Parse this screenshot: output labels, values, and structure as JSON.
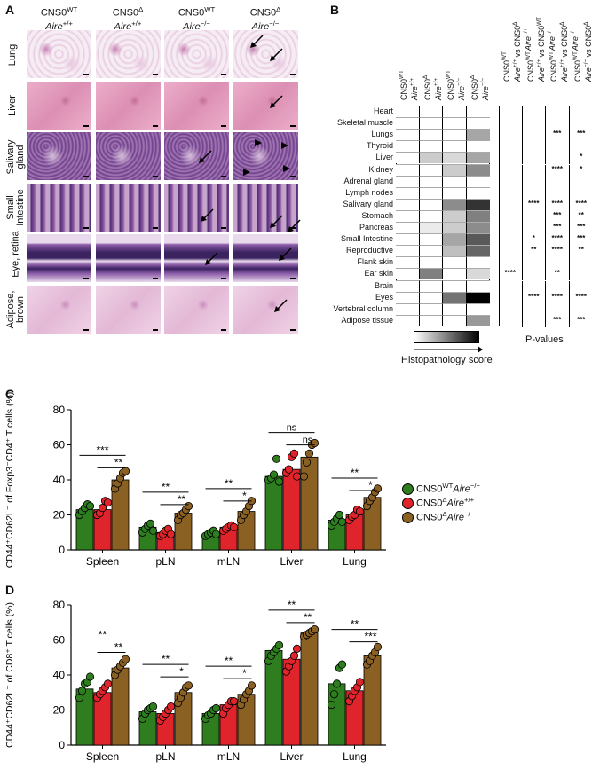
{
  "panel_a": {
    "letter": "A",
    "col_headers": [
      {
        "line1": "CNS0",
        "sup1": "WT",
        "line2": "Aire",
        "sup2": "+/+"
      },
      {
        "line1": "CNS0",
        "sup1": "Δ",
        "line2": "Aire",
        "sup2": "+/+"
      },
      {
        "line1": "CNS0",
        "sup1": "WT",
        "line2": "Aire",
        "sup2": "−/−"
      },
      {
        "line1": "CNS0",
        "sup1": "Δ",
        "line2": "Aire",
        "sup2": "−/−"
      }
    ],
    "row_labels": [
      "Lung",
      "Liver",
      "Salivary gland",
      "Small Intestine",
      "Eye, retina",
      "Adipose, brown"
    ]
  },
  "panel_b": {
    "letter": "B",
    "heatmap_headers": [
      {
        "a": "CNS0",
        "sa": "WT",
        "b": "Aire",
        "sb": "+/+"
      },
      {
        "a": "CNS0",
        "sa": "Δ",
        "b": "Aire",
        "sb": "+/+"
      },
      {
        "a": "CNS0",
        "sa": "WT",
        "b": "Aire",
        "sb": "−/−"
      },
      {
        "a": "CNS0",
        "sa": "Δ",
        "b": "Aire",
        "sb": "−/−"
      }
    ],
    "pval_headers": [
      {
        "a": "CNS0",
        "sa": "WT",
        "b": "Aire",
        "sb": "+/+",
        "c": "vs",
        "d": "CNS0",
        "sd": "Δ",
        "e": "Aire",
        "se": "+/+"
      },
      {
        "a": "CNS0",
        "sa": "WT",
        "b": "Aire",
        "sb": "+/+",
        "c": "vs",
        "d": "CNS0",
        "sd": "WT",
        "e": "Aire",
        "se": "−/−"
      },
      {
        "a": "CNS0",
        "sa": "WT",
        "b": "Aire",
        "sb": "+/+",
        "c": "vs",
        "d": "CNS0",
        "sd": "Δ",
        "e": "Aire",
        "se": "−/−"
      },
      {
        "a": "CNS0",
        "sa": "WT",
        "b": "Aire",
        "sb": "−/−",
        "c": "vs",
        "d": "CNS0",
        "sd": "Δ",
        "e": "Aire",
        "se": "−/−"
      }
    ],
    "tissues": [
      "Heart",
      "Skeletal muscle",
      "Lungs",
      "Thyroid",
      "Liver",
      "Kidney",
      "Adrenal gland",
      "Lymph nodes",
      "Salivary gland",
      "Stomach",
      "Pancreas",
      "Small Intestine",
      "Reproductive",
      "Flank skin",
      "Ear skin",
      "Brain",
      "Eyes",
      "Vertebral column",
      "Adipose tissue"
    ],
    "scores": [
      [
        0,
        0,
        0,
        0
      ],
      [
        0,
        0,
        0,
        0
      ],
      [
        0,
        0,
        0,
        0.35
      ],
      [
        0,
        0,
        0,
        0
      ],
      [
        0,
        0.2,
        0.15,
        0.35
      ],
      [
        0,
        0,
        0.2,
        0.45
      ],
      [
        0,
        0,
        0,
        0
      ],
      [
        0,
        0,
        0,
        0
      ],
      [
        0,
        0,
        0.45,
        0.8
      ],
      [
        0,
        0,
        0.2,
        0.5
      ],
      [
        0,
        0.08,
        0.2,
        0.45
      ],
      [
        0,
        0,
        0.35,
        0.65
      ],
      [
        0,
        0,
        0.25,
        0.6
      ],
      [
        0,
        0,
        0,
        0
      ],
      [
        0,
        0.5,
        0,
        0.15
      ],
      [
        0,
        0,
        0,
        0
      ],
      [
        0,
        0,
        0.55,
        1.0
      ],
      [
        0,
        0,
        0,
        0
      ],
      [
        0,
        0,
        0,
        0.4
      ]
    ],
    "pvalues": [
      [
        "",
        "",
        "",
        ""
      ],
      [
        "",
        "",
        "",
        ""
      ],
      [
        "",
        "",
        "***",
        "***"
      ],
      [
        "",
        "",
        "",
        ""
      ],
      [
        "",
        "",
        "",
        "*"
      ],
      [
        "",
        "",
        "****",
        "*"
      ],
      [
        "",
        "",
        "",
        ""
      ],
      [
        "",
        "",
        "",
        ""
      ],
      [
        "",
        "****",
        "****",
        "****"
      ],
      [
        "",
        "",
        "***",
        "**"
      ],
      [
        "",
        "",
        "***",
        "***"
      ],
      [
        "",
        "*",
        "****",
        "***"
      ],
      [
        "",
        "**",
        "****",
        "**"
      ],
      [
        "",
        "",
        "",
        ""
      ],
      [
        "****",
        "",
        "**",
        ""
      ],
      [
        "",
        "",
        "",
        ""
      ],
      [
        "",
        "****",
        "****",
        "****"
      ],
      [
        "",
        "",
        "",
        ""
      ],
      [
        "",
        "",
        "***",
        "***"
      ]
    ],
    "scale_label": "Histopathology score",
    "pvalues_label": "P-values"
  },
  "legend": {
    "items": [
      {
        "pre": "CNS0",
        "sup": "WT",
        "mid": "Aire",
        "sup2": "−/−",
        "color": "#2e7d1f"
      },
      {
        "pre": "CNS0",
        "sup": "Δ",
        "mid": "Aire",
        "sup2": "+/+",
        "color": "#e0242b"
      },
      {
        "pre": "CNS0",
        "sup": "Δ",
        "mid": "Aire",
        "sup2": "−/−",
        "color": "#8a6023"
      }
    ]
  },
  "chart_data": [
    {
      "panel": "C",
      "type": "bar",
      "categories": [
        "Spleen",
        "pLN",
        "mLN",
        "Liver",
        "Lung"
      ],
      "ylabel": "CD44⁺CD62L⁻ of Foxp3⁻CD4⁺ T cells (%)",
      "ylim": [
        0,
        80
      ],
      "yticks": [
        0,
        20,
        40,
        60,
        80
      ],
      "series": [
        {
          "values": [
            23,
            13,
            9,
            42,
            17
          ],
          "points": [
            [
              20,
              22,
              24,
              26,
              25
            ],
            [
              10,
              12,
              14,
              15,
              11
            ],
            [
              8,
              9,
              10,
              11,
              9
            ],
            [
              40,
              41,
              43,
              52,
              39
            ],
            [
              14,
              16,
              18,
              20,
              16
            ]
          ]
        },
        {
          "values": [
            23,
            10,
            13,
            46,
            20
          ],
          "points": [
            [
              20,
              21,
              24,
              28,
              27
            ],
            [
              8,
              9,
              11,
              12,
              9
            ],
            [
              11,
              12,
              13,
              14,
              13
            ],
            [
              44,
              46,
              53,
              55,
              42
            ],
            [
              17,
              19,
              20,
              23,
              22
            ]
          ]
        },
        {
          "values": [
            40,
            21,
            22,
            53,
            30
          ],
          "points": [
            [
              35,
              38,
              41,
              44,
              45
            ],
            [
              17,
              20,
              21,
              23,
              25
            ],
            [
              17,
              20,
              22,
              25,
              28
            ],
            [
              42,
              50,
              55,
              60,
              61
            ],
            [
              25,
              28,
              30,
              33,
              35
            ]
          ]
        }
      ],
      "significance": [
        {
          "cat": 0,
          "pairs": [
            [
              "***",
              0,
              2
            ],
            [
              "**",
              1,
              2
            ]
          ]
        },
        {
          "cat": 1,
          "pairs": [
            [
              "**",
              0,
              2
            ],
            [
              "**",
              1,
              2
            ]
          ]
        },
        {
          "cat": 2,
          "pairs": [
            [
              "**",
              0,
              2
            ],
            [
              "*",
              1,
              2
            ]
          ]
        },
        {
          "cat": 3,
          "pairs": [
            [
              "ns",
              0,
              2
            ],
            [
              "ns",
              1,
              2
            ]
          ]
        },
        {
          "cat": 4,
          "pairs": [
            [
              "**",
              0,
              2
            ],
            [
              "*",
              1,
              2
            ]
          ]
        }
      ]
    },
    {
      "panel": "D",
      "type": "bar",
      "categories": [
        "Spleen",
        "pLN",
        "mLN",
        "Liver",
        "Lung"
      ],
      "ylabel": "CD44⁺CD62L⁻ of CD8⁺ T cells (%)",
      "ylim": [
        0,
        80
      ],
      "yticks": [
        0,
        20,
        40,
        60,
        80
      ],
      "series": [
        {
          "values": [
            32,
            19,
            18,
            54,
            35
          ],
          "points": [
            [
              27,
              31,
              35,
              36,
              39
            ],
            [
              15,
              18,
              20,
              21,
              22
            ],
            [
              15,
              17,
              18,
              20,
              21
            ],
            [
              48,
              51,
              53,
              55,
              57
            ],
            [
              23,
              29,
              35,
              44,
              46
            ]
          ]
        },
        {
          "values": [
            30,
            18,
            23,
            49,
            31
          ],
          "points": [
            [
              27,
              29,
              31,
              33,
              35
            ],
            [
              14,
              16,
              18,
              20,
              22
            ],
            [
              18,
              21,
              23,
              25,
              25
            ],
            [
              42,
              45,
              48,
              51,
              55
            ],
            [
              25,
              28,
              31,
              33,
              36
            ]
          ]
        },
        {
          "values": [
            44,
            30,
            29,
            64,
            51
          ],
          "points": [
            [
              40,
              43,
              45,
              47,
              49
            ],
            [
              24,
              27,
              30,
              33,
              34
            ],
            [
              23,
              26,
              29,
              31,
              34
            ],
            [
              62,
              63,
              64,
              65,
              66
            ],
            [
              46,
              48,
              51,
              53,
              56
            ]
          ]
        }
      ],
      "significance": [
        {
          "cat": 0,
          "pairs": [
            [
              "**",
              0,
              2
            ],
            [
              "**",
              1,
              2
            ]
          ]
        },
        {
          "cat": 1,
          "pairs": [
            [
              "**",
              0,
              2
            ],
            [
              "*",
              1,
              2
            ]
          ]
        },
        {
          "cat": 2,
          "pairs": [
            [
              "**",
              0,
              2
            ],
            [
              "*",
              1,
              2
            ]
          ]
        },
        {
          "cat": 3,
          "pairs": [
            [
              "**",
              0,
              2
            ],
            [
              "**",
              1,
              2
            ]
          ]
        },
        {
          "cat": 4,
          "pairs": [
            [
              "**",
              0,
              2
            ],
            [
              "***",
              1,
              2
            ]
          ]
        }
      ]
    }
  ]
}
